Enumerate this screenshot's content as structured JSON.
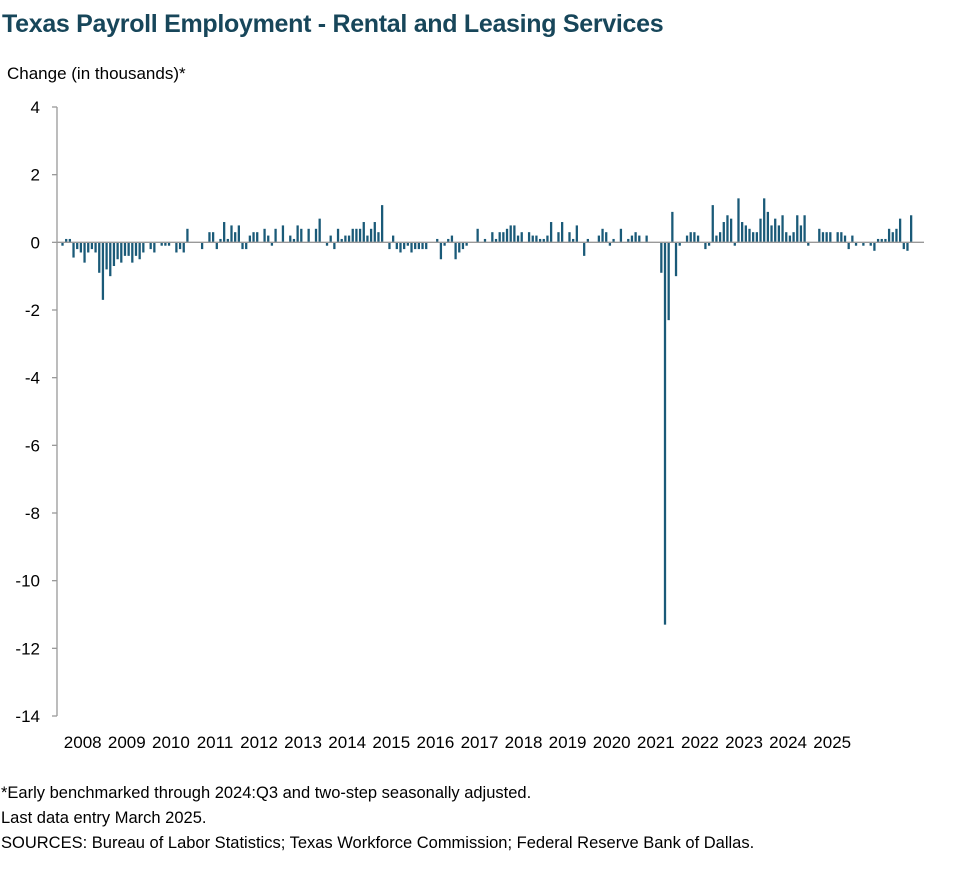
{
  "chart_data": {
    "type": "bar",
    "title": "Texas Payroll Employment - Rental and Leasing Services",
    "ylabel": "Change (in thousands)*",
    "xlabel": "",
    "ylim": [
      -14,
      4
    ],
    "yticks": [
      4,
      2,
      0,
      -2,
      -4,
      -6,
      -8,
      -10,
      -12,
      -14
    ],
    "ytick_labels": [
      "4",
      "2",
      "0",
      "-2",
      "-4",
      "-6",
      "-8",
      "-10",
      "-12",
      "-14"
    ],
    "x_start": "2008-01",
    "x_end": "2025-03",
    "xtick_labels": [
      "2008",
      "2009",
      "2010",
      "2011",
      "2012",
      "2013",
      "2014",
      "2015",
      "2016",
      "2017",
      "2018",
      "2019",
      "2020",
      "2021",
      "2022",
      "2023",
      "2024",
      "2025"
    ],
    "bar_color": "#1a5a78",
    "grid": false,
    "series": [
      {
        "values": [
          -0.1,
          0.1,
          0.1,
          -0.45,
          -0.2,
          -0.3,
          -0.6,
          -0.3,
          -0.2,
          -0.3,
          -0.9,
          -1.7,
          -0.8,
          -1.0,
          -0.7,
          -0.5,
          -0.6,
          -0.4,
          -0.4,
          -0.6,
          -0.4,
          -0.5,
          -0.3,
          0.0,
          -0.2,
          -0.3,
          0.0,
          -0.1,
          -0.1,
          -0.1,
          0.0,
          -0.3,
          -0.2,
          -0.3,
          0.4,
          0.0,
          0.0,
          0.0,
          -0.2,
          0.0,
          0.3,
          0.3,
          -0.2,
          0.1,
          0.6,
          0.1,
          0.5,
          0.3,
          0.5,
          -0.2,
          -0.2,
          0.2,
          0.3,
          0.3,
          0.0,
          0.4,
          0.2,
          -0.1,
          0.4,
          0.0,
          0.5,
          0.0,
          0.2,
          0.1,
          0.5,
          0.4,
          0.0,
          0.4,
          0.0,
          0.4,
          0.7,
          0.0,
          -0.1,
          0.2,
          -0.2,
          0.4,
          0.1,
          0.2,
          0.2,
          0.4,
          0.4,
          0.4,
          0.6,
          0.2,
          0.4,
          0.6,
          0.3,
          1.1,
          0.0,
          -0.2,
          0.2,
          -0.2,
          -0.3,
          -0.2,
          -0.1,
          -0.3,
          -0.2,
          -0.2,
          -0.2,
          -0.2,
          0.0,
          0.0,
          0.1,
          -0.5,
          -0.1,
          0.1,
          0.2,
          -0.5,
          -0.3,
          -0.2,
          -0.1,
          0.0,
          0.0,
          0.4,
          0.0,
          0.1,
          0.0,
          0.3,
          0.1,
          0.3,
          0.3,
          0.4,
          0.5,
          0.5,
          0.2,
          0.3,
          0.0,
          0.3,
          0.2,
          0.2,
          0.1,
          0.1,
          0.2,
          0.6,
          0.0,
          0.3,
          0.6,
          0.0,
          0.3,
          0.1,
          0.5,
          0.0,
          -0.4,
          0.1,
          0.0,
          0.0,
          0.2,
          0.4,
          0.3,
          -0.1,
          0.1,
          0.0,
          0.4,
          0.0,
          0.1,
          0.2,
          0.3,
          0.2,
          0.0,
          0.2,
          0.0,
          0.0,
          0.0,
          -0.9,
          -11.3,
          -2.3,
          0.9,
          -1.0,
          -0.1,
          0.0,
          0.2,
          0.3,
          0.3,
          0.2,
          0.0,
          -0.2,
          -0.1,
          1.1,
          0.2,
          0.3,
          0.6,
          0.8,
          0.7,
          -0.1,
          1.3,
          0.6,
          0.5,
          0.4,
          0.3,
          0.3,
          0.7,
          1.3,
          0.9,
          0.5,
          0.7,
          0.5,
          0.8,
          0.3,
          0.2,
          0.3,
          0.8,
          0.5,
          0.8,
          -0.1,
          0.0,
          0.0,
          0.4,
          0.3,
          0.3,
          0.3,
          0.0,
          0.3,
          0.3,
          0.2,
          -0.2,
          0.2,
          -0.1,
          0.0,
          -0.1,
          0.0,
          -0.1,
          -0.25,
          0.1,
          0.1,
          0.1,
          0.4,
          0.3,
          0.4,
          0.7,
          -0.2,
          -0.25,
          0.8,
          0.0,
          0.0
        ]
      }
    ]
  },
  "notes": {
    "line1": "*Early benchmarked through 2024:Q3 and two-step seasonally adjusted.",
    "line2": "Last data entry March 2025.",
    "line3": "SOURCES: Bureau of Labor Statistics; Texas Workforce Commission; Federal Reserve Bank of Dallas."
  }
}
